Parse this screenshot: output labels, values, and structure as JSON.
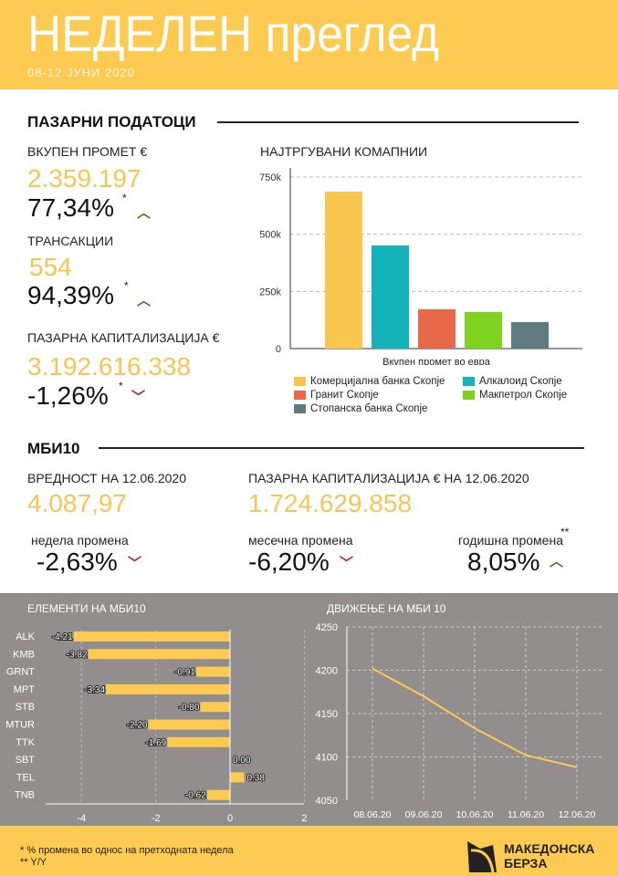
{
  "header": {
    "title": "НЕДЕЛЕН преглед",
    "date": "08-12 ЈУНИ 2020"
  },
  "market": {
    "section": "ПАЗАРНИ ПОДАТОЦИ",
    "turnover": {
      "label": "ВКУПЕН ПРОМЕТ €",
      "value": "2.359.197",
      "change": "77,34%",
      "star": "*",
      "direction": "up"
    },
    "transactions": {
      "label": "ТРАНСАКЦИИ",
      "value": "554",
      "change": "94,39%",
      "star": "*",
      "direction": "up"
    },
    "cap": {
      "label": "ПАЗАРНА КАПИТАЛИЗАЦИЈА €",
      "value": "3.192.616.338",
      "change": "-1,26%",
      "star": "*",
      "direction": "down"
    }
  },
  "mbi": {
    "section": "МБИ10",
    "value_label": "ВРЕДНОСТ НА 12.06.2020",
    "value": "4.087,97",
    "cap_label": "ПАЗАРНА КАПИТАЛИЗАЦИЈА € НА 12.06.2020",
    "cap": "1.724.629.858",
    "weekly": {
      "label": "недела промена",
      "value": "-2,63%",
      "direction": "down"
    },
    "monthly": {
      "label": "месечна промена",
      "value": "-6,20%",
      "direction": "down"
    },
    "yearly": {
      "label": "годишна промена",
      "star": "**",
      "value": "8,05%",
      "direction": "up"
    }
  },
  "footer": {
    "note1": "* % промена во однос на претходната недела",
    "note2": "** Y/Y",
    "logo_line1": "МАКЕДОНСКА",
    "logo_line2": "БЕРЗА"
  },
  "colors": {
    "yellow": "#FDCA52",
    "grey": "#928E8E",
    "up": "#4c7d1c",
    "down": "#c0272d"
  },
  "chart_data": [
    {
      "type": "bar",
      "title": "НАЈТРГУВАНИ КОМАПНИИ",
      "xlabel": "Вкупен промет во евра",
      "ylabel": "",
      "ylim": [
        0,
        750000
      ],
      "yticks": [
        "0",
        "250k",
        "500k",
        "750k"
      ],
      "ytick_values": [
        0,
        250000,
        500000,
        750000
      ],
      "series": [
        {
          "name": "Комерцијална банка Скопје",
          "value": 686000,
          "color": "#F9C74F"
        },
        {
          "name": "Алкалоид Скопје",
          "value": 451000,
          "color": "#13B3B9"
        },
        {
          "name": "Гранит Скопје",
          "value": 172000,
          "color": "#E8694A"
        },
        {
          "name": "Макпетрол Скопје",
          "value": 160000,
          "color": "#7ED321"
        },
        {
          "name": "Стопанска банка Скопје",
          "value": 116000,
          "color": "#5E7B82"
        }
      ],
      "legend": "bottom",
      "grid": true
    },
    {
      "type": "bar",
      "orientation": "horizontal",
      "title": "ЕЛЕМЕНТИ НА МБИ10",
      "xlim": [
        -5,
        2
      ],
      "xticks": [
        "-4",
        "-2",
        "0",
        "2"
      ],
      "xtick_values": [
        -4,
        -2,
        0,
        2
      ],
      "categories": [
        "ALK",
        "KMB",
        "GRNT",
        "MPT",
        "STB",
        "MTUR",
        "TTK",
        "SBT",
        "TEL",
        "TNB"
      ],
      "values": [
        -4.21,
        -3.82,
        -0.91,
        -3.34,
        -0.8,
        -2.2,
        -1.69,
        0.0,
        0.38,
        -0.62
      ],
      "labels": [
        "-4.21",
        "-3.82",
        "-0.91",
        "-3.34",
        "-0.80",
        "-2.20",
        "-1.69",
        "0.00",
        "0.38",
        "-0.62"
      ]
    },
    {
      "type": "line",
      "title": "ДВИЖЕЊЕ НА МБИ 10",
      "ylim": [
        4050,
        4250
      ],
      "yticks": [
        "4050",
        "4100",
        "4150",
        "4200",
        "4250"
      ],
      "ytick_values": [
        4050,
        4100,
        4150,
        4200,
        4250
      ],
      "x": [
        "08.06.20",
        "09.06.20",
        "10.06.20",
        "11.06.20",
        "12.06.20"
      ],
      "values": [
        4202,
        4170,
        4133,
        4102,
        4088
      ]
    }
  ]
}
